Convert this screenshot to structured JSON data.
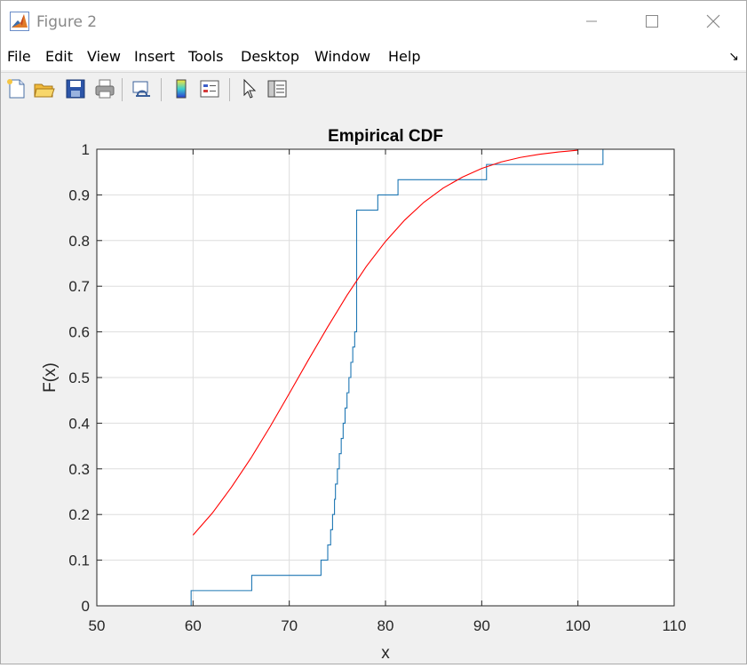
{
  "window": {
    "title": "Figure 2",
    "controls": [
      "minimize-icon",
      "maximize-icon",
      "close-icon"
    ]
  },
  "menu": [
    "File",
    "Edit",
    "View",
    "Insert",
    "Tools",
    "Desktop",
    "Window",
    "Help"
  ],
  "toolbar": [
    {
      "name": "new-figure-button",
      "icon": "new-file-icon"
    },
    {
      "name": "open-file-button",
      "icon": "folder-open-icon"
    },
    {
      "name": "save-figure-button",
      "icon": "save-icon"
    },
    {
      "name": "print-figure-button",
      "icon": "print-icon"
    },
    {
      "name": "link-plot-button",
      "icon": "link-plot-icon"
    },
    {
      "name": "insert-colorbar-button",
      "icon": "colorbar-icon"
    },
    {
      "name": "insert-legend-button",
      "icon": "legend-icon"
    },
    {
      "name": "edit-plot-button",
      "icon": "pointer-arrow-icon"
    },
    {
      "name": "property-inspector-button",
      "icon": "property-inspector-icon"
    }
  ],
  "colors": {
    "ecdf": "#1f77b4",
    "normal_cdf": "#ff0000",
    "grid": "#dddddd"
  },
  "chart_data": {
    "type": "line",
    "title": "Empirical CDF",
    "xlabel": "x",
    "ylabel": "F(x)",
    "xlim": [
      50,
      110
    ],
    "ylim": [
      0,
      1
    ],
    "xticks": [
      50,
      60,
      70,
      80,
      90,
      100,
      110
    ],
    "yticks": [
      0,
      0.1,
      0.2,
      0.3,
      0.4,
      0.5,
      0.6,
      0.7,
      0.8,
      0.9,
      1
    ],
    "ytick_labels": [
      "0",
      "0.1",
      "0.2",
      "0.3",
      "0.4",
      "0.5",
      "0.6",
      "0.7",
      "0.8",
      "0.9",
      "1"
    ],
    "grid": true,
    "series": [
      {
        "style": "stairs",
        "color": "#1f77b4",
        "x": [
          59.8,
          66.1,
          73.3,
          74.0,
          74.3,
          74.5,
          74.7,
          74.8,
          75.0,
          75.2,
          75.4,
          75.6,
          75.8,
          76.0,
          76.2,
          76.4,
          76.6,
          76.8,
          77.0,
          79.2,
          81.3,
          90.5,
          102.6
        ],
        "y": [
          0.0333,
          0.0667,
          0.1,
          0.1333,
          0.1667,
          0.2,
          0.2333,
          0.2667,
          0.3,
          0.3333,
          0.3667,
          0.4,
          0.4333,
          0.4667,
          0.5,
          0.5333,
          0.5667,
          0.6,
          0.8667,
          0.9,
          0.9333,
          0.9667,
          1.0
        ]
      },
      {
        "style": "curve",
        "color": "#ff0000",
        "x": [
          60,
          62,
          64,
          66,
          68,
          70,
          72,
          74,
          76,
          78,
          80,
          82,
          84,
          86,
          88,
          90,
          92,
          94,
          96,
          98,
          100
        ],
        "y": [
          0.155,
          0.203,
          0.26,
          0.323,
          0.392,
          0.465,
          0.539,
          0.611,
          0.68,
          0.743,
          0.798,
          0.845,
          0.884,
          0.915,
          0.939,
          0.958,
          0.972,
          0.982,
          0.989,
          0.994,
          0.998
        ]
      }
    ]
  }
}
